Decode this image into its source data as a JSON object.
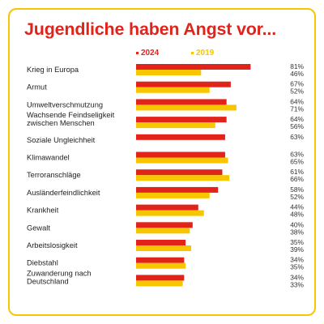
{
  "title": "Jugendliche haben Angst vor...",
  "colors": {
    "series_2024": "#e2231a",
    "series_2019": "#f7c600",
    "border": "#f7c600",
    "title": "#e2231a"
  },
  "chart_data": {
    "type": "bar",
    "orientation": "horizontal",
    "title": "Jugendliche haben Angst vor...",
    "categories": [
      [
        "Krieg in Europa"
      ],
      [
        "Armut"
      ],
      [
        "Umweltverschmutzung"
      ],
      [
        "Wachsende Feindseligkeit",
        "zwischen Menschen"
      ],
      [
        "Soziale Ungleichheit"
      ],
      [
        "Klimawandel"
      ],
      [
        "Terroranschläge"
      ],
      [
        "Ausländerfeindlichkeit"
      ],
      [
        "Krankheit"
      ],
      [
        "Gewalt"
      ],
      [
        "Arbeitslosigkeit"
      ],
      [
        "Diebstahl"
      ],
      [
        "Zuwanderung nach",
        "Deutschland"
      ]
    ],
    "series": [
      {
        "name": "2024",
        "color": "#e2231a",
        "values": [
          81,
          67,
          64,
          64,
          63,
          63,
          61,
          58,
          44,
          40,
          35,
          34,
          34
        ]
      },
      {
        "name": "2019",
        "color": "#f7c600",
        "values": [
          46,
          52,
          71,
          56,
          null,
          65,
          66,
          52,
          48,
          38,
          39,
          35,
          33
        ]
      }
    ],
    "value_suffix": "%",
    "xlim": [
      0,
      100
    ],
    "legend_position": "top-right",
    "grid": false
  }
}
